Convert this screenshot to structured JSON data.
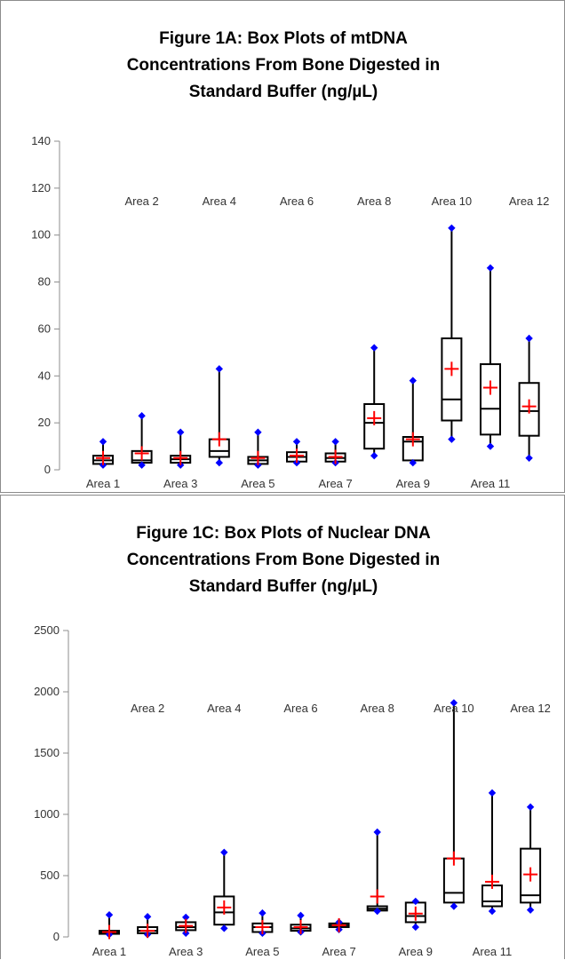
{
  "chart_data": [
    {
      "type": "box",
      "title_lines": [
        "Figure 1A: Box Plots of mtDNA",
        "Concentrations From Bone Digested in",
        "Standard Buffer (ng/µL)"
      ],
      "ylim": [
        0,
        140
      ],
      "yticks": [
        "0",
        "20",
        "40",
        "60",
        "80",
        "100",
        "120",
        "140"
      ],
      "categories": [
        "Area 1",
        "Area 2",
        "Area 3",
        "Area 4",
        "Area 5",
        "Area 6",
        "Area 7",
        "Area 8",
        "Area 9",
        "Area 10",
        "Area 11",
        "Area 12"
      ],
      "boxes": [
        {
          "min": 2,
          "q1": 2.5,
          "median": 4,
          "q3": 6,
          "max": 12,
          "mean": 5
        },
        {
          "min": 2,
          "q1": 3,
          "median": 4,
          "q3": 8,
          "max": 23,
          "mean": 7
        },
        {
          "min": 2,
          "q1": 3,
          "median": 4.5,
          "q3": 6,
          "max": 16,
          "mean": 5
        },
        {
          "min": 3,
          "q1": 5.5,
          "median": 8,
          "q3": 13,
          "max": 43,
          "mean": 13
        },
        {
          "min": 2,
          "q1": 2.5,
          "median": 4,
          "q3": 5.5,
          "max": 16,
          "mean": 5
        },
        {
          "min": 3,
          "q1": 3.5,
          "median": 5.5,
          "q3": 7.5,
          "max": 12,
          "mean": 6
        },
        {
          "min": 3,
          "q1": 3.5,
          "median": 5,
          "q3": 7,
          "max": 12,
          "mean": 5.5
        },
        {
          "min": 6,
          "q1": 9,
          "median": 20,
          "q3": 28,
          "max": 52,
          "mean": 22
        },
        {
          "min": 3,
          "q1": 4,
          "median": 12,
          "q3": 14,
          "max": 38,
          "mean": 13
        },
        {
          "min": 13,
          "q1": 21,
          "median": 30,
          "q3": 56,
          "max": 103,
          "mean": 43
        },
        {
          "min": 10,
          "q1": 15,
          "median": 26,
          "q3": 45,
          "max": 86,
          "mean": 35
        },
        {
          "min": 5,
          "q1": 14.5,
          "median": 25,
          "q3": 37,
          "max": 56,
          "mean": 27
        }
      ],
      "colors": {
        "box": "#000000",
        "mean": "#ff0000",
        "extreme": "#0000ff"
      }
    },
    {
      "type": "box",
      "title_lines": [
        "Figure 1C: Box Plots of Nuclear DNA",
        "Concentrations From Bone Digested in",
        "Standard Buffer (ng/µL)"
      ],
      "ylim": [
        0,
        2500
      ],
      "yticks": [
        "0",
        "500",
        "1000",
        "1500",
        "2000",
        "2500"
      ],
      "categories": [
        "Area 1",
        "Area 2",
        "Area 3",
        "Area 4",
        "Area 5",
        "Area 6",
        "Area 7",
        "Area 8",
        "Area 9",
        "Area 10",
        "Area 11",
        "Area 12"
      ],
      "boxes": [
        {
          "min": 20,
          "q1": 25,
          "median": 35,
          "q3": 50,
          "max": 180,
          "mean": 40
        },
        {
          "min": 20,
          "q1": 30,
          "median": 50,
          "q3": 80,
          "max": 165,
          "mean": 50
        },
        {
          "min": 30,
          "q1": 55,
          "median": 80,
          "q3": 120,
          "max": 160,
          "mean": 90
        },
        {
          "min": 70,
          "q1": 100,
          "median": 200,
          "q3": 330,
          "max": 690,
          "mean": 240
        },
        {
          "min": 30,
          "q1": 40,
          "median": 80,
          "q3": 110,
          "max": 195,
          "mean": 80
        },
        {
          "min": 40,
          "q1": 50,
          "median": 70,
          "q3": 100,
          "max": 175,
          "mean": 80
        },
        {
          "min": 60,
          "q1": 80,
          "median": 95,
          "q3": 110,
          "max": 120,
          "mean": 95
        },
        {
          "min": 210,
          "q1": 215,
          "median": 230,
          "q3": 250,
          "max": 855,
          "mean": 330
        },
        {
          "min": 80,
          "q1": 120,
          "median": 170,
          "q3": 280,
          "max": 290,
          "mean": 190
        },
        {
          "min": 250,
          "q1": 280,
          "median": 360,
          "q3": 640,
          "max": 1910,
          "mean": 640
        },
        {
          "min": 210,
          "q1": 250,
          "median": 290,
          "q3": 420,
          "max": 1175,
          "mean": 450
        },
        {
          "min": 220,
          "q1": 280,
          "median": 340,
          "q3": 720,
          "max": 1060,
          "mean": 510
        }
      ],
      "colors": {
        "box": "#000000",
        "mean": "#ff0000",
        "extreme": "#0000ff"
      }
    }
  ]
}
